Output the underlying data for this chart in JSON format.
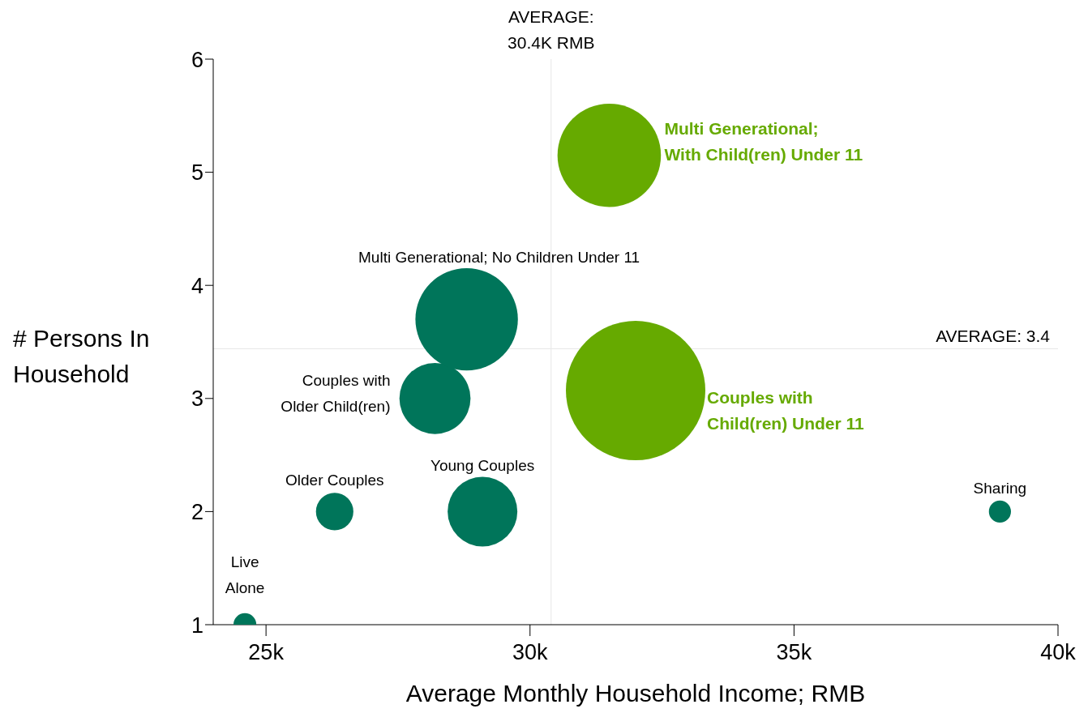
{
  "chart_data": {
    "type": "bubble",
    "xlabel": "Average Monthly Household Income; RMB",
    "ylabel": "# Persons In Household",
    "xlim": [
      24000,
      40000
    ],
    "xticks": [
      {
        "value": 25000,
        "label": "25k"
      },
      {
        "value": 30000,
        "label": "30k"
      },
      {
        "value": 35000,
        "label": "35k"
      },
      {
        "value": 40000,
        "label": "40k"
      }
    ],
    "ylim": [
      1,
      6
    ],
    "yticks": [
      1,
      2,
      3,
      4,
      5,
      6
    ],
    "series": [
      {
        "name": "Live Alone",
        "color": "#00755a",
        "x": [
          24600
        ],
        "values": [
          1
        ],
        "sizes": [
          0.027
        ]
      },
      {
        "name": "Older Couples",
        "color": "#00755a",
        "x": [
          26300
        ],
        "values": [
          2
        ],
        "sizes": [
          0.072
        ]
      },
      {
        "name": "Young Couples",
        "color": "#00755a",
        "x": [
          29100
        ],
        "values": [
          2
        ],
        "sizes": [
          0.25
        ]
      },
      {
        "name": "Couples with Older Child(ren)",
        "color": "#00755a",
        "x": [
          28200
        ],
        "values": [
          3
        ],
        "sizes": [
          0.26
        ]
      },
      {
        "name": "Multi Generational; No Children Under 11",
        "color": "#00755a",
        "x": [
          28800
        ],
        "values": [
          3.7
        ],
        "sizes": [
          0.54
        ]
      },
      {
        "name": "Multi Generational; With Child(ren) Under 11",
        "color": "#66aa00",
        "x": [
          31500
        ],
        "values": [
          5.15
        ],
        "sizes": [
          0.55
        ]
      },
      {
        "name": "Couples with Child(ren) Under 11",
        "color": "#66aa00",
        "x": [
          32000
        ],
        "values": [
          3.07
        ],
        "sizes": [
          1
        ]
      },
      {
        "name": "Sharing",
        "color": "#00755a",
        "x": [
          38900
        ],
        "values": [
          2
        ],
        "sizes": [
          0.025
        ]
      }
    ],
    "ref_lines": [
      {
        "axis": "x",
        "value": 30400,
        "label": "AVERAGE: 30.4K RMB",
        "color": "#e6e6e6"
      },
      {
        "axis": "y",
        "value": 3.44,
        "label": "AVERAGE: 3.4",
        "color": "#e6e6e6"
      }
    ]
  }
}
